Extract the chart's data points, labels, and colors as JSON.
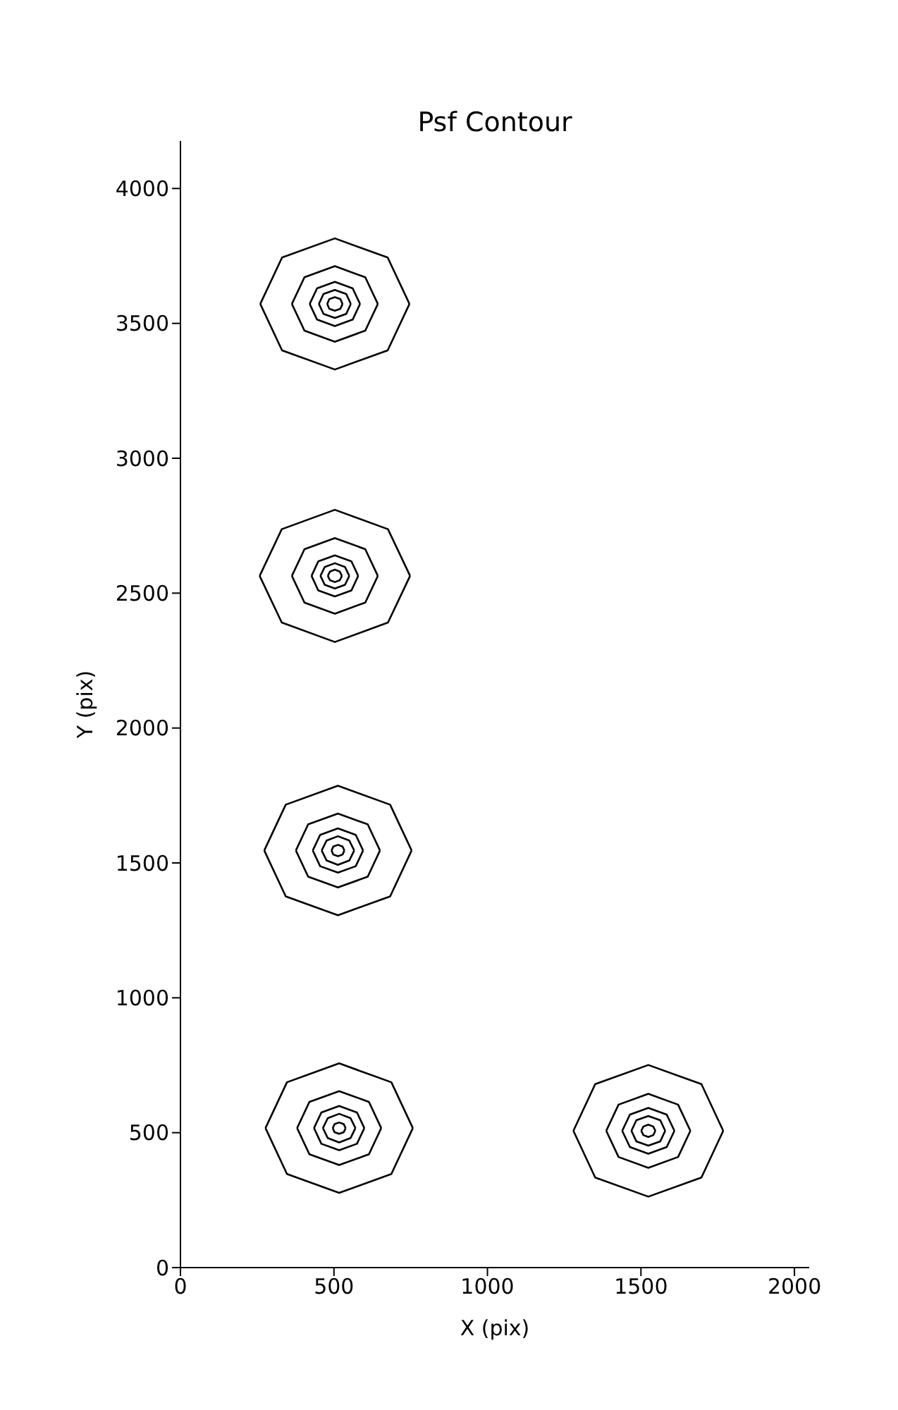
{
  "chart_data": {
    "type": "line",
    "title": "Psf Contour",
    "xlabel": "X (pix)",
    "ylabel": "Y (pix)",
    "xlim": [
      0,
      2048
    ],
    "ylim": [
      0,
      4176
    ],
    "xticks": [
      0,
      500,
      1000,
      1500,
      2000
    ],
    "yticks": [
      0,
      500,
      1000,
      1500,
      2000,
      2500,
      3000,
      3500,
      4000
    ],
    "marker": "none",
    "line_style": "solid",
    "series": [
      {
        "color": "#000000",
        "x": [
          260,
          331,
          503,
          675,
          746
        ],
        "values": [
          3572,
          3744,
          3815,
          3744,
          3572
        ]
      },
      {
        "color": "#000000",
        "x": [
          260,
          331,
          503,
          675,
          746
        ],
        "values": [
          3572,
          3400,
          3329,
          3400,
          3572
        ]
      },
      {
        "color": "#000000",
        "x": [
          363,
          404,
          503,
          602,
          643
        ],
        "values": [
          3572,
          3671,
          3712,
          3671,
          3572
        ]
      },
      {
        "color": "#000000",
        "x": [
          363,
          404,
          503,
          602,
          643
        ],
        "values": [
          3572,
          3473,
          3432,
          3473,
          3572
        ]
      },
      {
        "color": "#000000",
        "x": [
          421,
          445,
          503,
          561,
          585
        ],
        "values": [
          3572,
          3630,
          3654,
          3630,
          3572
        ]
      },
      {
        "color": "#000000",
        "x": [
          421,
          445,
          503,
          561,
          585
        ],
        "values": [
          3572,
          3514,
          3490,
          3514,
          3572
        ]
      },
      {
        "color": "#000000",
        "x": [
          451,
          466,
          503,
          540,
          555
        ],
        "values": [
          3572,
          3609,
          3624,
          3609,
          3572
        ]
      },
      {
        "color": "#000000",
        "x": [
          451,
          466,
          503,
          540,
          555
        ],
        "values": [
          3572,
          3535,
          3520,
          3535,
          3572
        ]
      },
      {
        "color": "#000000",
        "x": [
          478,
          485,
          503,
          521,
          528
        ],
        "values": [
          3572,
          3590,
          3597,
          3590,
          3572
        ]
      },
      {
        "color": "#000000",
        "x": [
          478,
          485,
          503,
          521,
          528
        ],
        "values": [
          3572,
          3554,
          3547,
          3554,
          3572
        ]
      },
      {
        "color": "#000000",
        "x": [
          258,
          330,
          503,
          676,
          748
        ],
        "values": [
          2564,
          2737,
          2809,
          2737,
          2564
        ]
      },
      {
        "color": "#000000",
        "x": [
          258,
          330,
          503,
          676,
          748
        ],
        "values": [
          2564,
          2391,
          2319,
          2391,
          2564
        ]
      },
      {
        "color": "#000000",
        "x": [
          363,
          404,
          503,
          602,
          643
        ],
        "values": [
          2564,
          2663,
          2704,
          2663,
          2564
        ]
      },
      {
        "color": "#000000",
        "x": [
          363,
          404,
          503,
          602,
          643
        ],
        "values": [
          2564,
          2465,
          2424,
          2465,
          2564
        ]
      },
      {
        "color": "#000000",
        "x": [
          427,
          449,
          503,
          557,
          579
        ],
        "values": [
          2564,
          2618,
          2640,
          2618,
          2564
        ]
      },
      {
        "color": "#000000",
        "x": [
          427,
          449,
          503,
          557,
          579
        ],
        "values": [
          2564,
          2510,
          2488,
          2510,
          2564
        ]
      },
      {
        "color": "#000000",
        "x": [
          456,
          470,
          503,
          536,
          550
        ],
        "values": [
          2564,
          2597,
          2611,
          2597,
          2564
        ]
      },
      {
        "color": "#000000",
        "x": [
          456,
          470,
          503,
          536,
          550
        ],
        "values": [
          2564,
          2531,
          2517,
          2531,
          2564
        ]
      },
      {
        "color": "#000000",
        "x": [
          480,
          487,
          503,
          519,
          526
        ],
        "values": [
          2564,
          2580,
          2587,
          2580,
          2564
        ]
      },
      {
        "color": "#000000",
        "x": [
          480,
          487,
          503,
          519,
          526
        ],
        "values": [
          2564,
          2548,
          2541,
          2548,
          2564
        ]
      },
      {
        "color": "#000000",
        "x": [
          273,
          343,
          513,
          683,
          753
        ],
        "values": [
          1546,
          1716,
          1786,
          1716,
          1546
        ]
      },
      {
        "color": "#000000",
        "x": [
          273,
          343,
          513,
          683,
          753
        ],
        "values": [
          1546,
          1376,
          1306,
          1376,
          1546
        ]
      },
      {
        "color": "#000000",
        "x": [
          376,
          416,
          513,
          610,
          650
        ],
        "values": [
          1546,
          1643,
          1683,
          1643,
          1546
        ]
      },
      {
        "color": "#000000",
        "x": [
          376,
          416,
          513,
          610,
          650
        ],
        "values": [
          1546,
          1449,
          1409,
          1449,
          1546
        ]
      },
      {
        "color": "#000000",
        "x": [
          431,
          455,
          513,
          571,
          595
        ],
        "values": [
          1546,
          1604,
          1628,
          1604,
          1546
        ]
      },
      {
        "color": "#000000",
        "x": [
          431,
          455,
          513,
          571,
          595
        ],
        "values": [
          1546,
          1488,
          1464,
          1488,
          1546
        ]
      },
      {
        "color": "#000000",
        "x": [
          460,
          476,
          513,
          550,
          566
        ],
        "values": [
          1546,
          1583,
          1599,
          1583,
          1546
        ]
      },
      {
        "color": "#000000",
        "x": [
          460,
          476,
          513,
          550,
          566
        ],
        "values": [
          1546,
          1509,
          1493,
          1509,
          1546
        ]
      },
      {
        "color": "#000000",
        "x": [
          492,
          498,
          513,
          528,
          534
        ],
        "values": [
          1546,
          1561,
          1567,
          1561,
          1546
        ]
      },
      {
        "color": "#000000",
        "x": [
          492,
          498,
          513,
          528,
          534
        ],
        "values": [
          1546,
          1531,
          1525,
          1531,
          1546
        ]
      },
      {
        "color": "#000000",
        "x": [
          277,
          347,
          517,
          687,
          757
        ],
        "values": [
          517,
          687,
          757,
          687,
          517
        ]
      },
      {
        "color": "#000000",
        "x": [
          277,
          347,
          517,
          687,
          757
        ],
        "values": [
          517,
          347,
          277,
          347,
          517
        ]
      },
      {
        "color": "#000000",
        "x": [
          380,
          420,
          517,
          614,
          654
        ],
        "values": [
          517,
          614,
          654,
          614,
          517
        ]
      },
      {
        "color": "#000000",
        "x": [
          380,
          420,
          517,
          614,
          654
        ],
        "values": [
          517,
          420,
          380,
          420,
          517
        ]
      },
      {
        "color": "#000000",
        "x": [
          435,
          459,
          517,
          575,
          599
        ],
        "values": [
          517,
          575,
          599,
          575,
          517
        ]
      },
      {
        "color": "#000000",
        "x": [
          435,
          459,
          517,
          575,
          599
        ],
        "values": [
          517,
          459,
          435,
          459,
          517
        ]
      },
      {
        "color": "#000000",
        "x": [
          464,
          480,
          517,
          554,
          570
        ],
        "values": [
          517,
          554,
          570,
          554,
          517
        ]
      },
      {
        "color": "#000000",
        "x": [
          464,
          480,
          517,
          554,
          570
        ],
        "values": [
          517,
          480,
          464,
          480,
          517
        ]
      },
      {
        "color": "#000000",
        "x": [
          496,
          502,
          517,
          532,
          538
        ],
        "values": [
          517,
          532,
          538,
          532,
          517
        ]
      },
      {
        "color": "#000000",
        "x": [
          496,
          502,
          517,
          532,
          538
        ],
        "values": [
          517,
          502,
          496,
          502,
          517
        ]
      },
      {
        "color": "#000000",
        "x": [
          1280,
          1351,
          1524,
          1697,
          1768
        ],
        "values": [
          507,
          680,
          751,
          680,
          507
        ]
      },
      {
        "color": "#000000",
        "x": [
          1280,
          1351,
          1524,
          1697,
          1768
        ],
        "values": [
          507,
          334,
          263,
          334,
          507
        ]
      },
      {
        "color": "#000000",
        "x": [
          1387,
          1427,
          1524,
          1621,
          1661
        ],
        "values": [
          507,
          604,
          644,
          604,
          507
        ]
      },
      {
        "color": "#000000",
        "x": [
          1387,
          1427,
          1524,
          1621,
          1661
        ],
        "values": [
          507,
          410,
          370,
          410,
          507
        ]
      },
      {
        "color": "#000000",
        "x": [
          1439,
          1464,
          1524,
          1584,
          1609
        ],
        "values": [
          507,
          567,
          592,
          567,
          507
        ]
      },
      {
        "color": "#000000",
        "x": [
          1439,
          1464,
          1524,
          1584,
          1609
        ],
        "values": [
          507,
          447,
          422,
          447,
          507
        ]
      },
      {
        "color": "#000000",
        "x": [
          1469,
          1485,
          1524,
          1563,
          1579
        ],
        "values": [
          507,
          546,
          562,
          546,
          507
        ]
      },
      {
        "color": "#000000",
        "x": [
          1469,
          1485,
          1524,
          1563,
          1579
        ],
        "values": [
          507,
          468,
          452,
          468,
          507
        ]
      },
      {
        "color": "#000000",
        "x": [
          1501,
          1508,
          1524,
          1540,
          1547
        ],
        "values": [
          507,
          523,
          530,
          523,
          507
        ]
      },
      {
        "color": "#000000",
        "x": [
          1501,
          1508,
          1524,
          1540,
          1547
        ],
        "values": [
          507,
          491,
          484,
          491,
          507
        ]
      }
    ]
  }
}
